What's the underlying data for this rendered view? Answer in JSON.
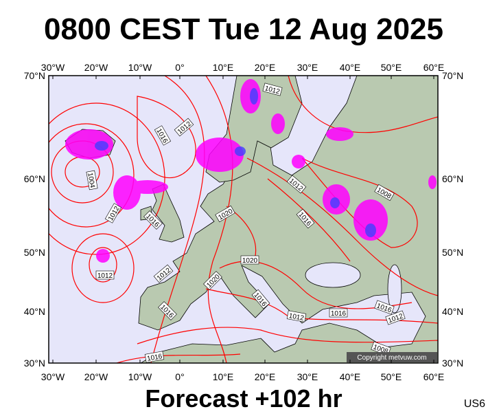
{
  "header": {
    "title": "0800 CEST Tue 12 Aug 2025"
  },
  "axes": {
    "longitudes": [
      "30°W",
      "20°W",
      "10°W",
      "0°",
      "10°E",
      "20°E",
      "30°E",
      "40°E",
      "50°E",
      "60°E"
    ],
    "latitudes": [
      "70°N",
      "60°N",
      "50°N",
      "40°N",
      "30°N"
    ]
  },
  "isobar_labels": [
    "1016",
    "1012",
    "1004",
    "1012",
    "1016",
    "1020",
    "1012",
    "1012",
    "1020",
    "1020",
    "1016",
    "1016",
    "1012",
    "1016",
    "1016",
    "1012",
    "1008",
    "1016",
    "1012",
    "1012",
    "1016",
    "1008"
  ],
  "copyright": "Copyright metvuw.com",
  "footer": {
    "forecast": "Forecast +102 hr",
    "code": "US6"
  }
}
